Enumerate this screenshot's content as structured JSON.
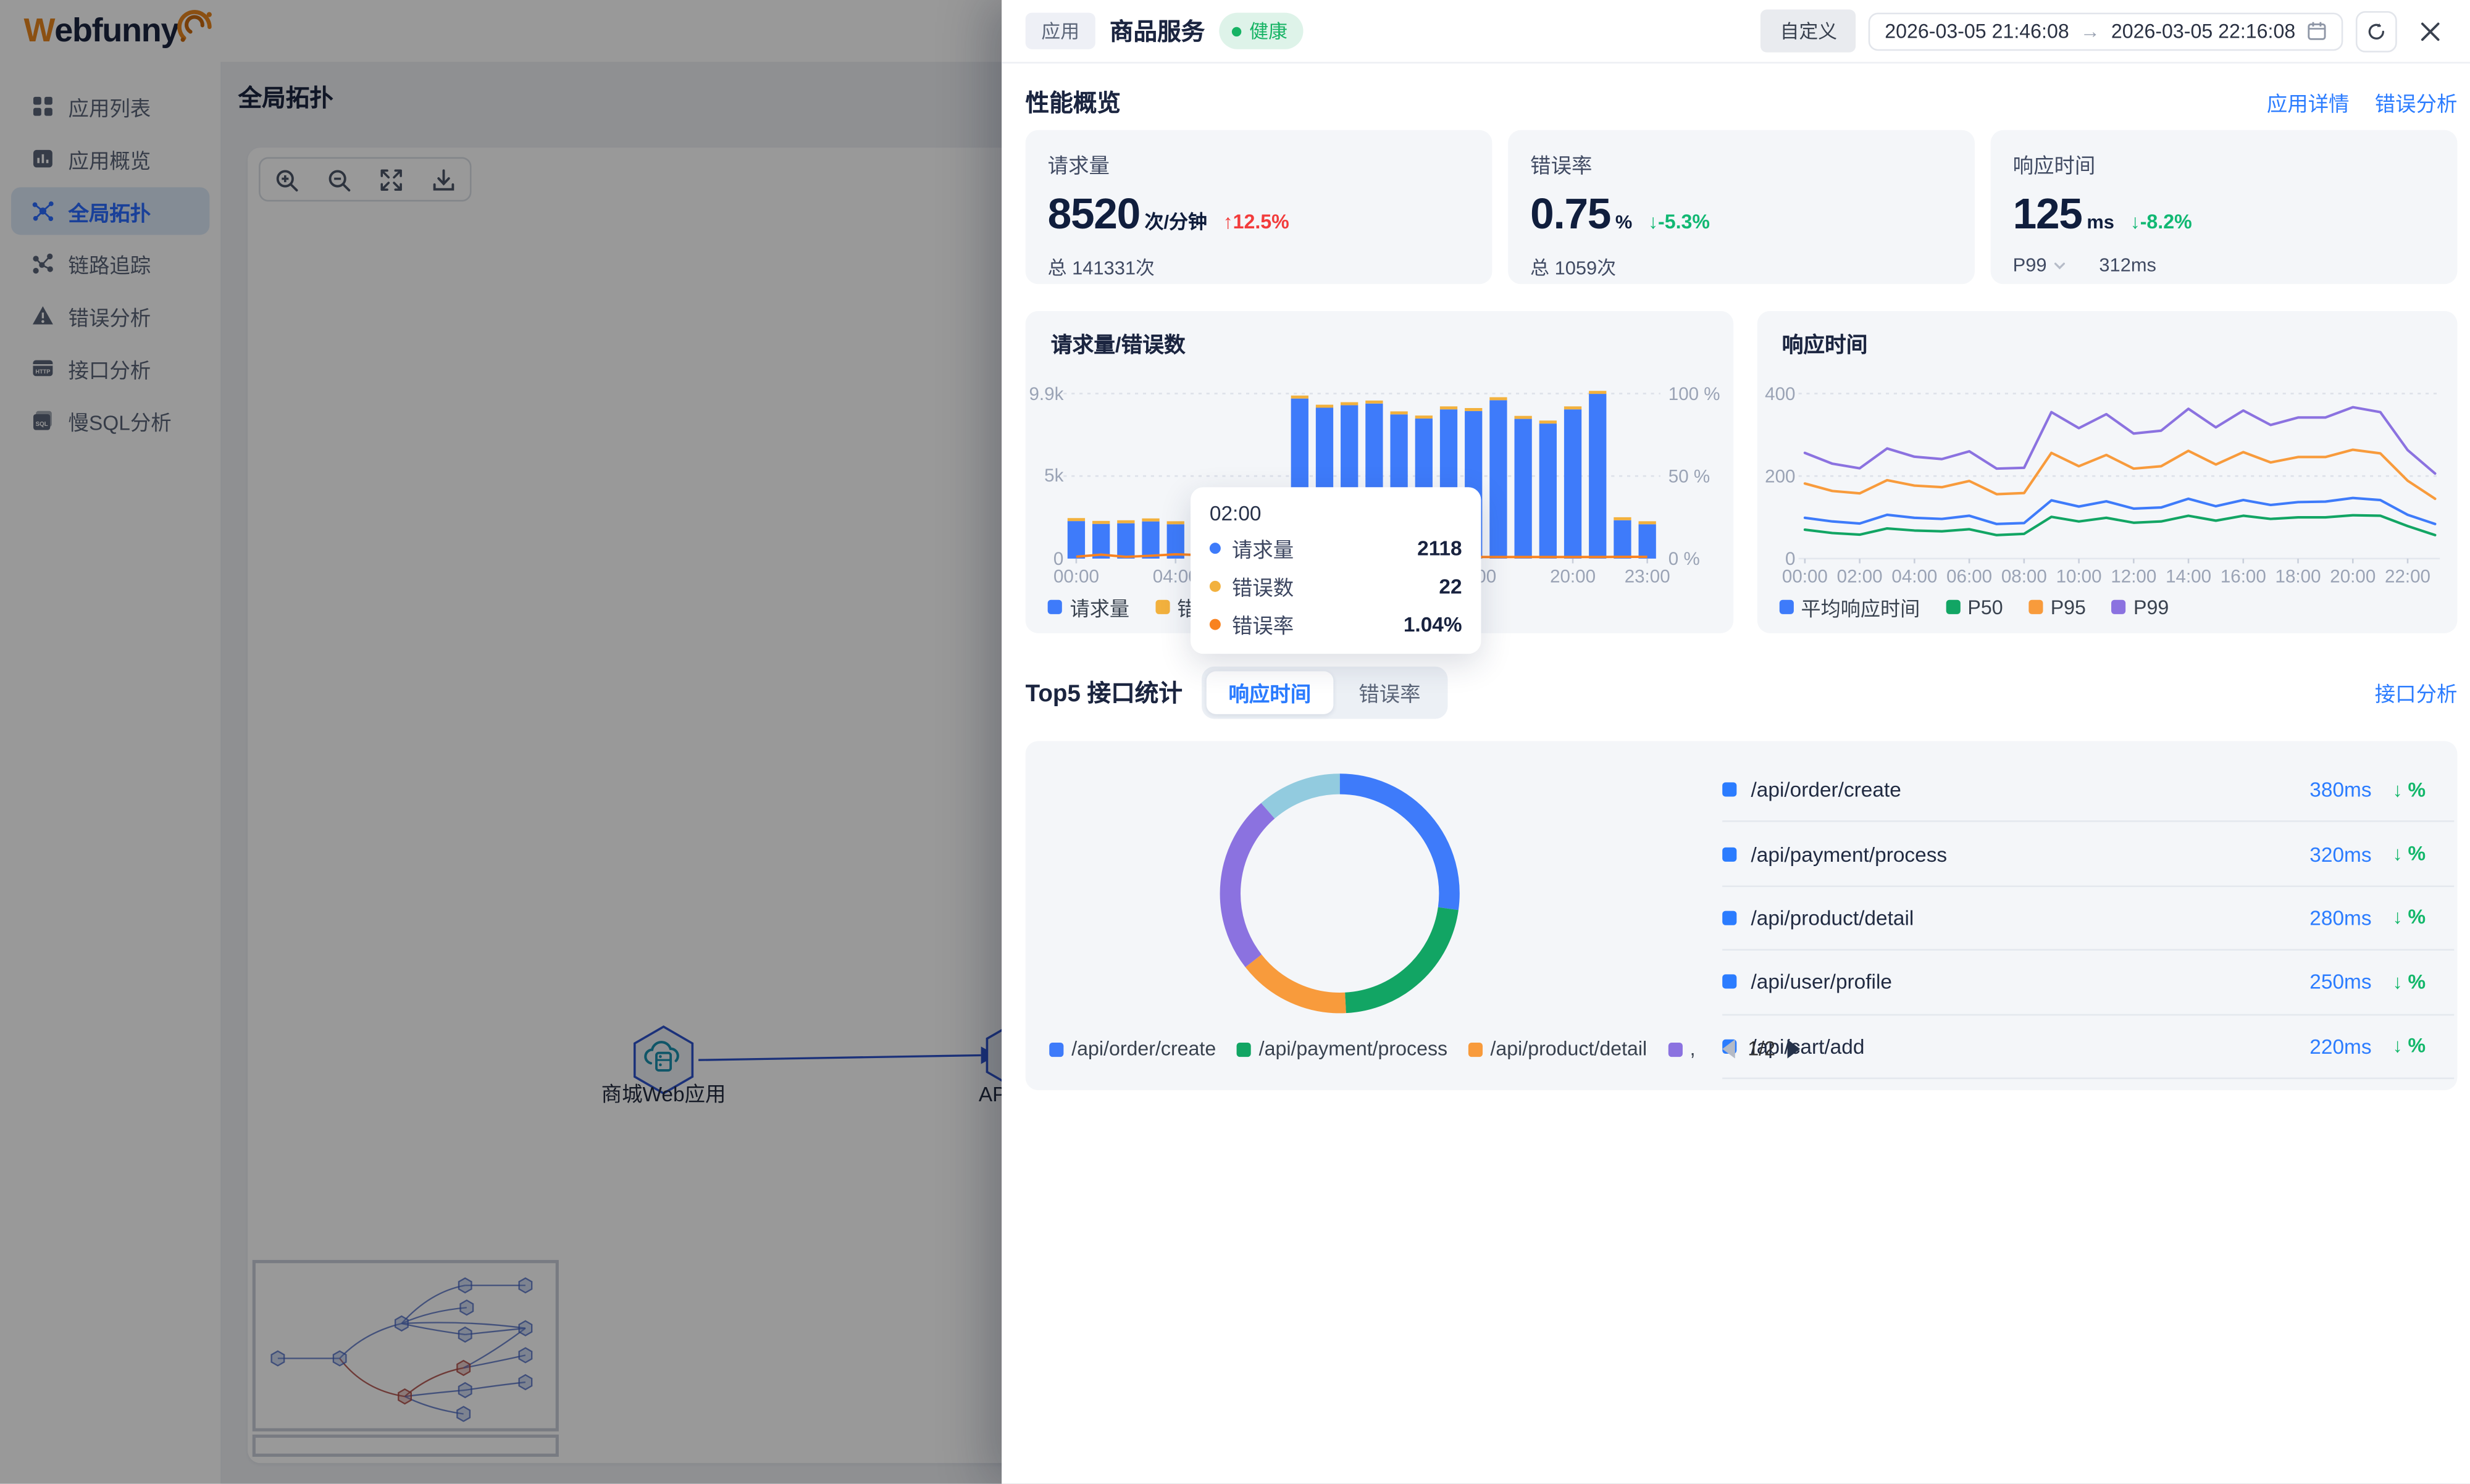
{
  "header": {
    "brand_first": "W",
    "brand_rest": "ebfunny"
  },
  "sidebar": {
    "items": [
      {
        "label": "应用列表",
        "icon": "grid-icon",
        "active": false
      },
      {
        "label": "应用概览",
        "icon": "chart-icon",
        "active": false
      },
      {
        "label": "全局拓扑",
        "icon": "topology-icon",
        "active": true
      },
      {
        "label": "链路追踪",
        "icon": "trace-icon",
        "active": false
      },
      {
        "label": "错误分析",
        "icon": "warning-icon",
        "active": false
      },
      {
        "label": "接口分析",
        "icon": "http-icon",
        "active": false
      },
      {
        "label": "慢SQL分析",
        "icon": "sql-icon",
        "active": false
      }
    ]
  },
  "main": {
    "page_title": "全局拓扑",
    "toolbar": [
      {
        "icon": "zoom-in-icon"
      },
      {
        "icon": "zoom-out-icon"
      },
      {
        "icon": "fit-view-icon"
      },
      {
        "icon": "download-icon"
      }
    ],
    "topology": {
      "node1": "商城Web应用",
      "node2": "API网关"
    }
  },
  "drawer": {
    "tag": "应用",
    "title": "商品服务",
    "status": "健康",
    "custom_button": "自定义",
    "time_start": "2026-03-05 21:46:08",
    "time_arrow": "→",
    "time_end": "2026-03-05 22:16:08",
    "overview": {
      "heading": "性能概览",
      "links": [
        "应用详情",
        "错误分析"
      ],
      "cards": [
        {
          "label": "请求量",
          "value": "8520",
          "unit": "次/分钟",
          "delta": "↑12.5%",
          "trend": "up",
          "footer": "总 141331次"
        },
        {
          "label": "错误率",
          "value": "0.75",
          "unit": "%",
          "delta": "↓-5.3%",
          "trend": "down",
          "footer": "总 1059次"
        },
        {
          "label": "响应时间",
          "value": "125",
          "unit": "ms",
          "delta": "↓-8.2%",
          "trend": "down",
          "footer": "P99",
          "footer2": "312ms"
        }
      ]
    },
    "top5": {
      "heading": "Top5 接口统计",
      "tabs": [
        {
          "label": "响应时间",
          "active": true
        },
        {
          "label": "错误率",
          "active": false
        }
      ],
      "link": "接口分析",
      "pagination": "1/2",
      "list": [
        {
          "name": "/api/order/create",
          "value": "380ms",
          "trend": "↓ %"
        },
        {
          "name": "/api/payment/process",
          "value": "320ms",
          "trend": "↓ %"
        },
        {
          "name": "/api/product/detail",
          "value": "280ms",
          "trend": "↓ %"
        },
        {
          "name": "/api/user/profile",
          "value": "250ms",
          "trend": "↓ %"
        },
        {
          "name": "/api/cart/add",
          "value": "220ms",
          "trend": "↓ %"
        }
      ]
    }
  },
  "colors": {
    "accent_blue": "#2b7cff",
    "bar_blue": "#3e7bfa",
    "error_yellow": "#f2b13e",
    "error_rate_orange": "#f9821f",
    "green": "#12a564",
    "purple": "#8b72e0",
    "light_blue": "#92cbdf",
    "red": "#f23c3c",
    "success": "#16b364"
  },
  "chart_data": [
    {
      "id": "requests_errors",
      "type": "bar",
      "title": "请求量/错误数",
      "categories": [
        "00:00",
        "01:00",
        "02:00",
        "03:00",
        "04:00",
        "05:00",
        "06:00",
        "07:00",
        "08:00",
        "09:00",
        "10:00",
        "11:00",
        "12:00",
        "13:00",
        "14:00",
        "15:00",
        "16:00",
        "17:00",
        "18:00",
        "19:00",
        "20:00",
        "21:00",
        "22:00",
        "23:00"
      ],
      "series": [
        {
          "name": "请求量",
          "type": "bar",
          "color": "#3e7bfa",
          "values": [
            2250,
            2080,
            2118,
            2230,
            2060,
            2140,
            2180,
            2120,
            2200,
            9600,
            9050,
            9200,
            9300,
            8650,
            8400,
            8950,
            8850,
            9500,
            8380,
            8100,
            8950,
            9880,
            2300,
            2060
          ]
        },
        {
          "name": "错误数",
          "type": "bar-cap",
          "color": "#f2b13e",
          "values": [
            25,
            21,
            22,
            24,
            20,
            22,
            23,
            21,
            24,
            94,
            88,
            90,
            92,
            84,
            80,
            87,
            86,
            93,
            82,
            78,
            88,
            98,
            25,
            21
          ]
        },
        {
          "name": "错误率",
          "type": "line",
          "color": "#f9821f",
          "values": [
            1.2,
            2.4,
            1.04,
            1.7,
            2.6,
            2.1,
            1.6,
            1.3,
            1.5,
            0.98,
            0.97,
            0.98,
            0.99,
            0.97,
            0.95,
            0.97,
            0.97,
            0.98,
            0.98,
            0.96,
            0.98,
            0.99,
            1.09,
            1.02
          ]
        }
      ],
      "y_left": {
        "ticks": [
          "0",
          "5k",
          "9.9k"
        ],
        "tick_values": [
          0,
          5000,
          9900
        ],
        "max": 9900
      },
      "y_right": {
        "ticks": [
          "0 %",
          "50 %",
          "100 %"
        ],
        "tick_values": [
          0,
          50,
          100
        ],
        "max": 100
      },
      "x_ticks": [
        "00:00",
        "04:00",
        "08:00",
        "12:00",
        "16:00",
        "20:00",
        "23:00"
      ],
      "legend": [
        {
          "label": "请求量",
          "color": "#3e7bfa"
        },
        {
          "label": "错误数",
          "color": "#f2b13e"
        }
      ],
      "tooltip": {
        "title": "02:00",
        "rows": [
          {
            "label": "请求量",
            "value": "2118",
            "color": "#3e7bfa"
          },
          {
            "label": "错误数",
            "value": "22",
            "color": "#f2b13e"
          },
          {
            "label": "错误率",
            "value": "1.04%",
            "color": "#f9821f"
          }
        ]
      }
    },
    {
      "id": "response_time",
      "type": "line",
      "title": "响应时间",
      "categories": [
        "00:00",
        "01:00",
        "02:00",
        "03:00",
        "04:00",
        "05:00",
        "06:00",
        "07:00",
        "08:00",
        "09:00",
        "10:00",
        "11:00",
        "12:00",
        "13:00",
        "14:00",
        "15:00",
        "16:00",
        "17:00",
        "18:00",
        "19:00",
        "20:00",
        "21:00",
        "22:00",
        "23:00"
      ],
      "x_ticks": [
        "00:00",
        "02:00",
        "04:00",
        "06:00",
        "08:00",
        "10:00",
        "12:00",
        "14:00",
        "16:00",
        "18:00",
        "20:00",
        "22:00"
      ],
      "ylim": [
        0,
        400
      ],
      "y_ticks": [
        "0",
        "200",
        "400"
      ],
      "y_tick_values": [
        0,
        200,
        400
      ],
      "series": [
        {
          "name": "平均响应时间",
          "color": "#3e7bfa",
          "values": [
            99,
            90,
            85,
            106,
            99,
            96,
            104,
            84,
            86,
            141,
            126,
            139,
            121,
            124,
            145,
            127,
            142,
            130,
            137,
            138,
            147,
            142,
            106,
            84
          ]
        },
        {
          "name": "P50",
          "color": "#12a564",
          "values": [
            70,
            62,
            58,
            73,
            68,
            66,
            71,
            57,
            60,
            101,
            90,
            99,
            87,
            90,
            104,
            92,
            104,
            96,
            100,
            100,
            105,
            104,
            79,
            57
          ]
        },
        {
          "name": "P95",
          "color": "#f89b3c",
          "values": [
            182,
            164,
            158,
            190,
            177,
            173,
            188,
            156,
            159,
            256,
            224,
            251,
            218,
            224,
            261,
            228,
            258,
            233,
            246,
            246,
            264,
            255,
            189,
            145
          ]
        },
        {
          "name": "P99",
          "color": "#8b72e0",
          "values": [
            256,
            230,
            219,
            267,
            247,
            241,
            260,
            218,
            220,
            355,
            316,
            350,
            303,
            310,
            363,
            318,
            359,
            324,
            342,
            342,
            367,
            355,
            263,
            206
          ]
        }
      ]
    },
    {
      "id": "top5_share",
      "type": "pie",
      "labels": [
        "/api/order/create",
        "/api/payment/process",
        "/api/product/detail",
        "/api/user/profile",
        "/api/cart/add"
      ],
      "values_ms": [
        380,
        320,
        280,
        250,
        220
      ],
      "angles_deg": [
        98,
        79,
        55,
        87,
        41
      ],
      "colors": [
        "#3e7bfa",
        "#12a564",
        "#f89b3c",
        "#8b72e0",
        "#92cbdf"
      ],
      "legend_visible": [
        "/api/order/create",
        "/api/payment/process",
        "/api/product/detail",
        ","
      ],
      "pagination": "1/2"
    }
  ]
}
